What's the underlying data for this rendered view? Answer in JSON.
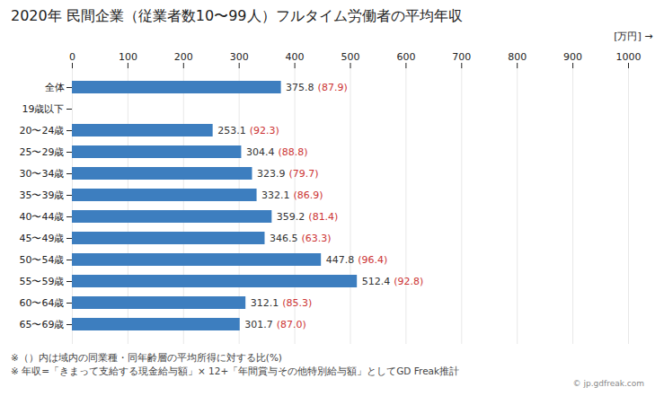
{
  "chart_data": {
    "type": "bar",
    "orientation": "horizontal",
    "title": "2020年 民間企業（従業者数10〜99人）フルタイム労働者の平均年収",
    "xlabel": "[万円]",
    "categories": [
      "全体",
      "19歳以下",
      "20〜24歳",
      "25〜29歳",
      "30〜34歳",
      "35〜39歳",
      "40〜44歳",
      "45〜49歳",
      "50〜54歳",
      "55〜59歳",
      "60〜64歳",
      "65〜69歳"
    ],
    "values": [
      375.8,
      null,
      253.1,
      304.4,
      323.9,
      332.1,
      359.2,
      346.5,
      447.8,
      512.4,
      312.1,
      301.7
    ],
    "ratio_labels": [
      "(87.9)",
      null,
      "(92.3)",
      "(88.8)",
      "(79.7)",
      "(86.9)",
      "(81.4)",
      "(63.3)",
      "(96.4)",
      "(92.8)",
      "(85.3)",
      "(87.0)"
    ],
    "ratio_color": "#cc3333",
    "color": "#3d7ebf",
    "data_labels": true,
    "xlim": [
      0,
      1000
    ],
    "xticks": [
      0,
      100,
      200,
      300,
      400,
      500,
      600,
      700,
      800,
      900,
      1000
    ],
    "grid": true,
    "footnotes": [
      "※（）内は域内の同業種・同年齢層の平均所得に対する比(%)",
      "※ 年収=「きまって支給する現金給与額」× 12+「年間賞与その他特別給与額」としてGD Freak推計"
    ],
    "credit": "© jp.gdfreak.com"
  }
}
